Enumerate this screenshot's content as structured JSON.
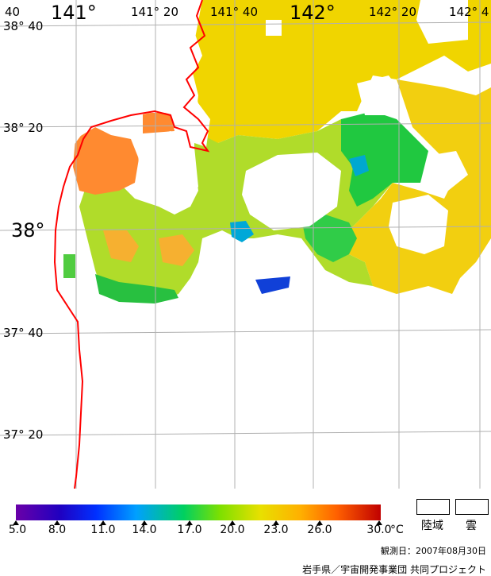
{
  "map": {
    "lon_labels": [
      "141°",
      "141° 20",
      "141° 40",
      "142°",
      "142° 20",
      "142° 4"
    ],
    "lat_labels": [
      "38° 40",
      "38° 20",
      "38°",
      "37° 40",
      "37° 20"
    ],
    "corner_label": "40"
  },
  "legend": {
    "scale_ticks": [
      "5.0",
      "8.0",
      "11.0",
      "14.0",
      "17.0",
      "20.0",
      "23.0",
      "26.0",
      "30.0"
    ],
    "unit": "°C",
    "land_label": "陸域",
    "cloud_label": "雲",
    "observation_date": "観測日：2007年08月30日",
    "credit": "岩手県／宇宙開発事業団 共同プロジェクト"
  },
  "colors": {
    "coastline": "#ff0000",
    "grid": "#b0b0b0",
    "orange": "#ff8c2a",
    "yellow": "#f2dc00",
    "lime": "#a8e030",
    "green": "#20cc40",
    "cyan": "#00a0d0",
    "blue": "#0030d0"
  }
}
